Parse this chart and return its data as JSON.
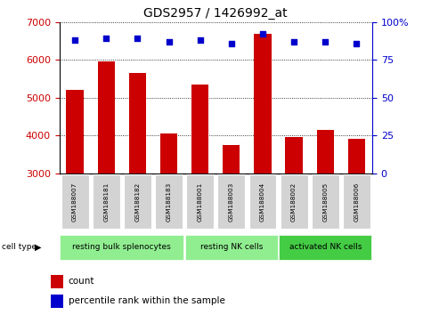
{
  "title": "GDS2957 / 1426992_at",
  "samples": [
    "GSM188007",
    "GSM188181",
    "GSM188182",
    "GSM188183",
    "GSM188001",
    "GSM188003",
    "GSM188004",
    "GSM188002",
    "GSM188005",
    "GSM188006"
  ],
  "counts": [
    5200,
    5950,
    5650,
    4050,
    5350,
    3750,
    6700,
    3950,
    4150,
    3900
  ],
  "percentiles": [
    88,
    89,
    89,
    87,
    88,
    86,
    92,
    87,
    87,
    86
  ],
  "ylim_left": [
    3000,
    7000
  ],
  "ylim_right": [
    0,
    100
  ],
  "yticks_left": [
    3000,
    4000,
    5000,
    6000,
    7000
  ],
  "yticks_right": [
    0,
    25,
    50,
    75,
    100
  ],
  "bar_color": "#cc0000",
  "dot_color": "#0000cc",
  "sample_bg": "#d0d0d0",
  "group1_color": "#90ee90",
  "group2_color": "#44cc44",
  "group_configs": [
    [
      0,
      3,
      "resting bulk splenocytes",
      "#90ee90"
    ],
    [
      4,
      6,
      "resting NK cells",
      "#90ee90"
    ],
    [
      7,
      9,
      "activated NK cells",
      "#44cc44"
    ]
  ]
}
